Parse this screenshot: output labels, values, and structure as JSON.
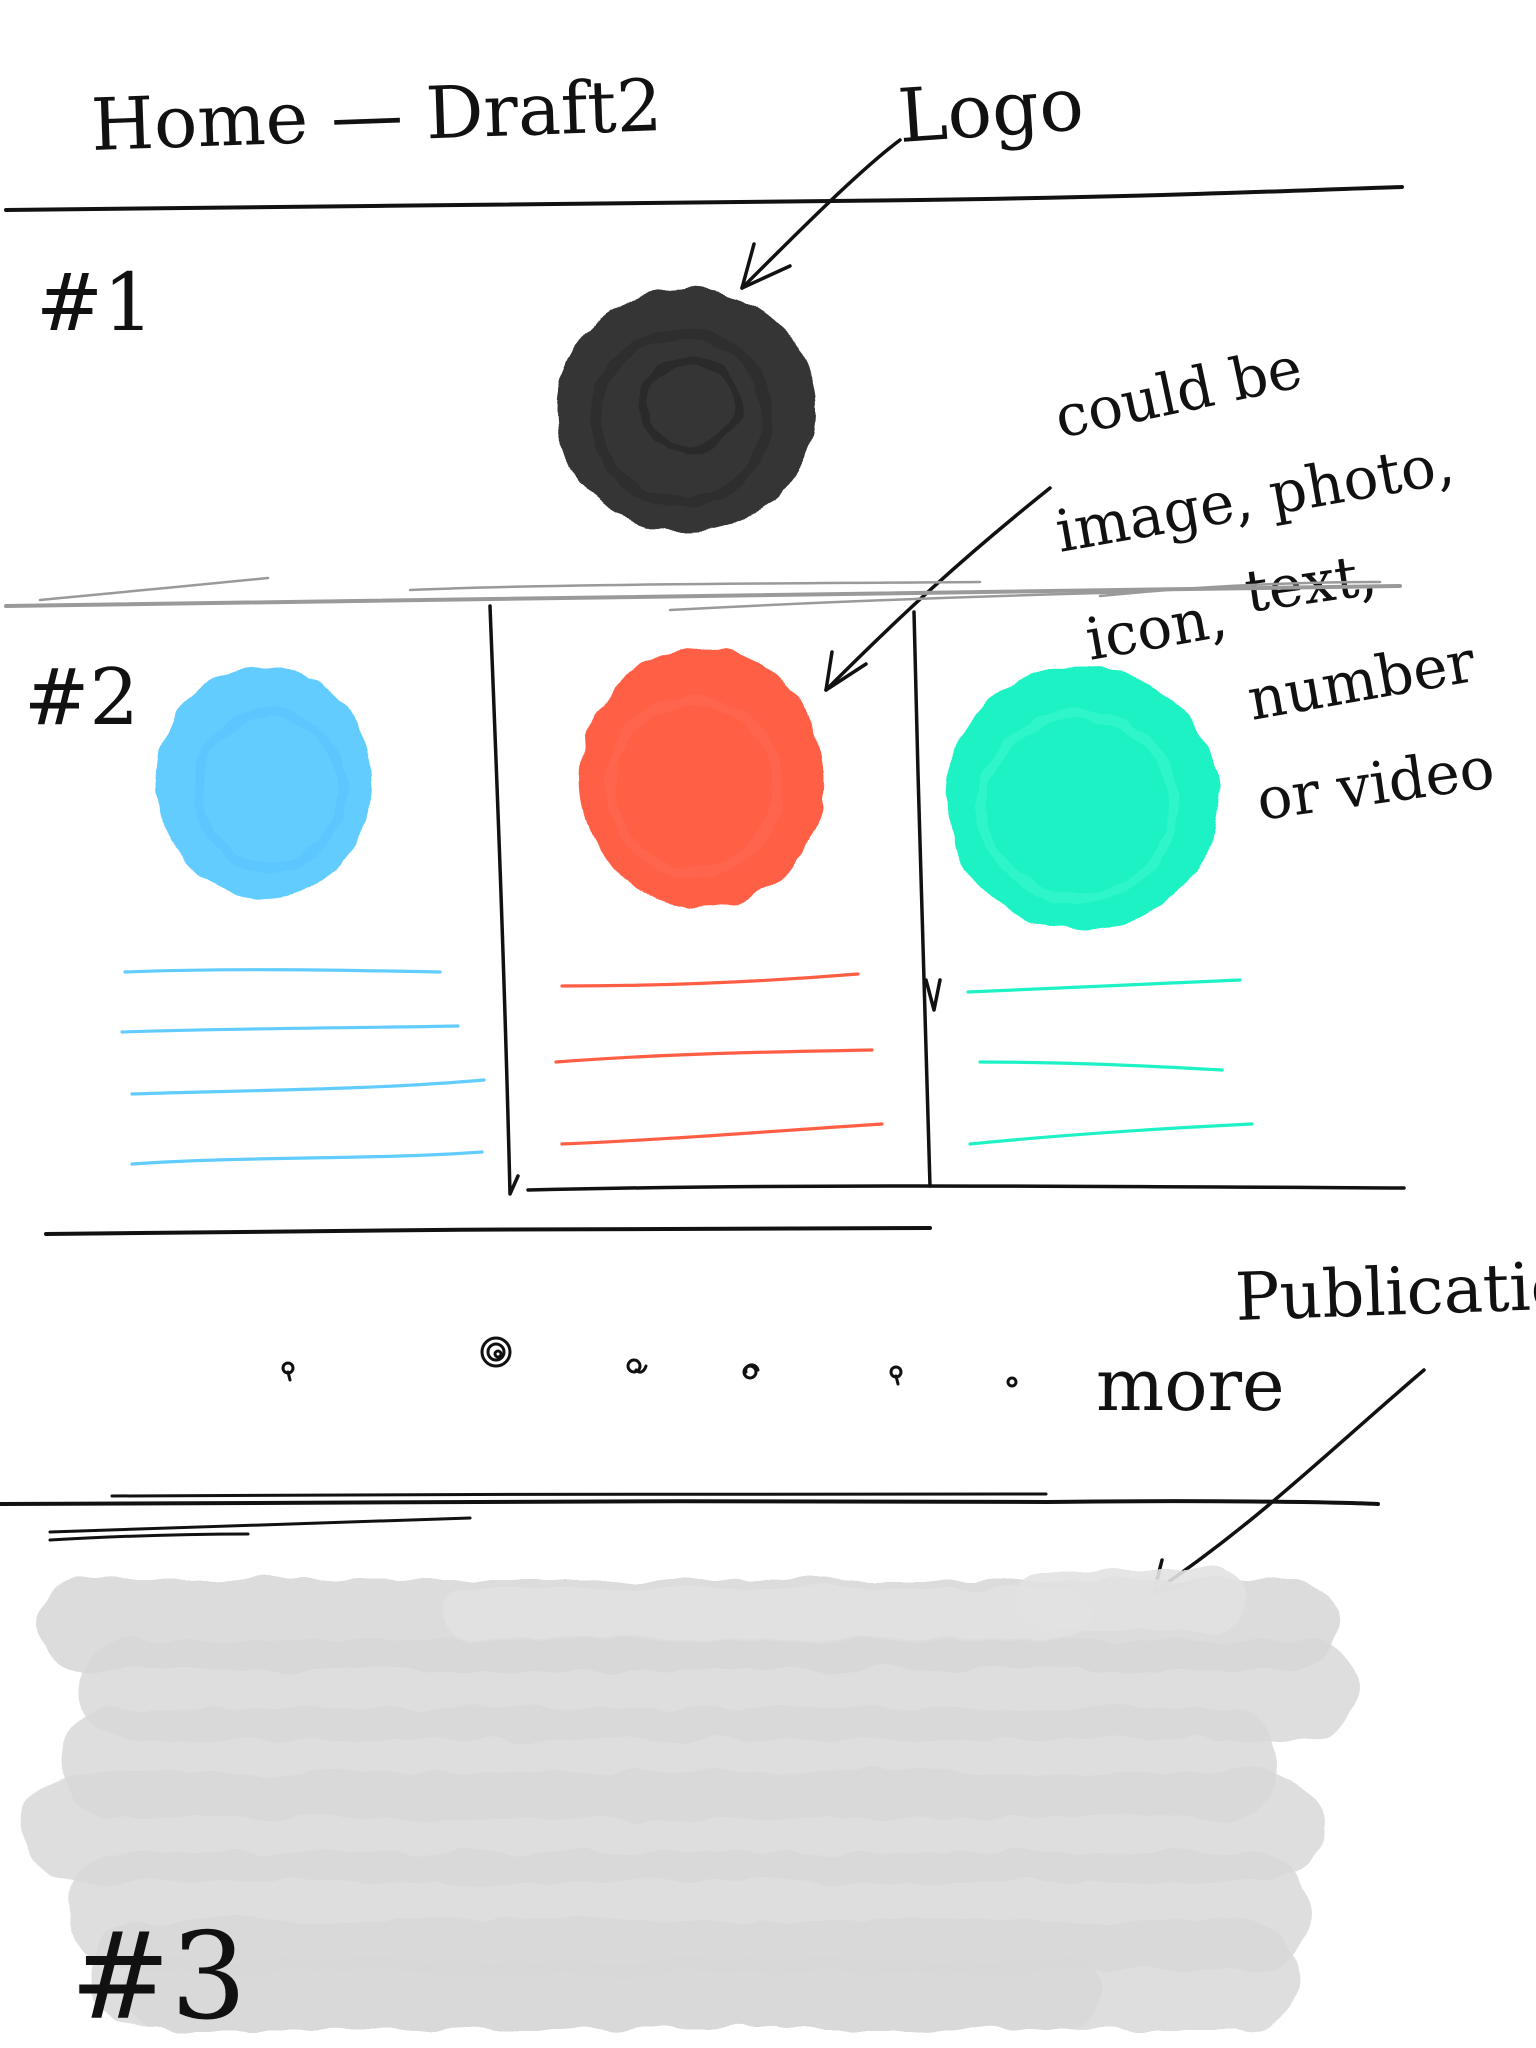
{
  "page": {
    "title": "Home — Draft2"
  },
  "sections": {
    "s1": "#1",
    "s2": "#2",
    "s3": "#3"
  },
  "annotations": {
    "logo": "Logo",
    "could_be": [
      "could be",
      "image, photo,",
      "text,",
      "icon,",
      "number",
      "or video"
    ],
    "publication": "Publication",
    "more": "more"
  },
  "colors": {
    "ink": "#111111",
    "logo_fill": "#343434",
    "card_blue": "#63CCFF",
    "card_red": "#FF5E45",
    "card_teal": "#1EF2C4",
    "divider_gray": "#9a9a9a",
    "publication_gray": "#D8D8D8"
  },
  "cards": [
    {
      "color": "card_blue",
      "lines": 4
    },
    {
      "color": "card_red",
      "lines": 3
    },
    {
      "color": "card_teal",
      "lines": 3
    }
  ],
  "pagination": {
    "dots": 6,
    "active_index": 1
  },
  "icons": {
    "logo": "logo-placeholder-circle",
    "card_media": "media-placeholder-circle",
    "publication": "publication-placeholder-block"
  }
}
